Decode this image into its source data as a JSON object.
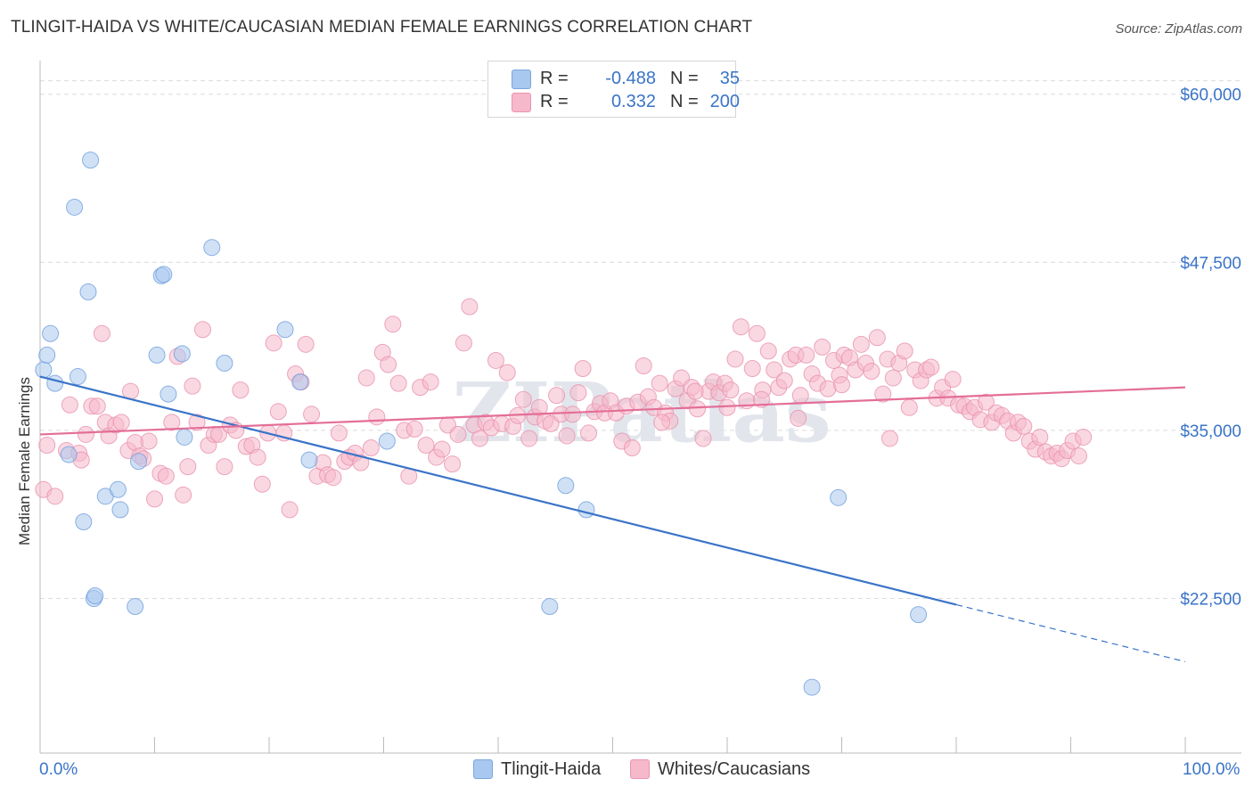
{
  "title": "TLINGIT-HAIDA VS WHITE/CAUCASIAN MEDIAN FEMALE EARNINGS CORRELATION CHART",
  "source": "Source: ZipAtlas.com",
  "watermark": "ZIPatlas",
  "colors": {
    "blue": "#3a74c8",
    "blue_fill": "#a9c8ef",
    "pink": "#e46e97",
    "pink_fill": "#f6b8cb",
    "grid": "#dcdcdc"
  },
  "legend": {
    "r_label": "R =",
    "n_label": "N =",
    "series": [
      {
        "name": "Tlingit-Haida",
        "r": "-0.488",
        "n": "35"
      },
      {
        "name": "Whites/Caucasians",
        "r": "0.332",
        "n": "200"
      }
    ]
  },
  "axes": {
    "x_min_label": "0.0%",
    "x_max_label": "100.0%"
  },
  "chart_data": {
    "type": "scatter",
    "title": "TLINGIT-HAIDA VS WHITE/CAUCASIAN MEDIAN FEMALE EARNINGS CORRELATION CHART",
    "xlabel": "",
    "ylabel": "Median Female Earnings",
    "xlim": [
      0,
      100
    ],
    "ylim": [
      11000,
      62500
    ],
    "y_ticks": [
      22500,
      35000,
      47500,
      60000
    ],
    "y_tick_labels": [
      "$22,500",
      "$35,000",
      "$47,500",
      "$60,000"
    ],
    "grid": true,
    "series": [
      {
        "name": "Tlingit-Haida",
        "trend": {
          "x0": 0,
          "y0": 39000,
          "x1": 100,
          "y1": 17800,
          "solid_until_x": 80
        },
        "points": [
          [
            0.3,
            39500
          ],
          [
            0.6,
            40600
          ],
          [
            0.9,
            42200
          ],
          [
            1.3,
            38500
          ],
          [
            2.5,
            33200
          ],
          [
            3.0,
            51600
          ],
          [
            3.3,
            39000
          ],
          [
            3.8,
            28200
          ],
          [
            4.2,
            45300
          ],
          [
            4.7,
            22500
          ],
          [
            4.4,
            55100
          ],
          [
            4.8,
            22700
          ],
          [
            5.7,
            30100
          ],
          [
            6.8,
            30600
          ],
          [
            7.0,
            29100
          ],
          [
            8.3,
            21900
          ],
          [
            8.6,
            32700
          ],
          [
            10.2,
            40600
          ],
          [
            10.6,
            46500
          ],
          [
            10.8,
            46600
          ],
          [
            11.2,
            37700
          ],
          [
            12.4,
            40700
          ],
          [
            12.6,
            34500
          ],
          [
            15.0,
            48600
          ],
          [
            16.1,
            40000
          ],
          [
            21.4,
            42500
          ],
          [
            22.7,
            38600
          ],
          [
            23.5,
            32800
          ],
          [
            30.3,
            34200
          ],
          [
            44.5,
            21900
          ],
          [
            45.9,
            30900
          ],
          [
            47.7,
            29100
          ],
          [
            69.7,
            30000
          ],
          [
            76.7,
            21300
          ],
          [
            67.4,
            15900
          ]
        ]
      },
      {
        "name": "Whites/Caucasians",
        "trend": {
          "x0": 0,
          "y0": 34700,
          "x1": 100,
          "y1": 38200
        },
        "points": [
          [
            0.3,
            30600
          ],
          [
            0.6,
            33900
          ],
          [
            1.3,
            30100
          ],
          [
            2.3,
            33500
          ],
          [
            2.6,
            36900
          ],
          [
            3.4,
            33300
          ],
          [
            3.6,
            32800
          ],
          [
            4.0,
            34700
          ],
          [
            4.5,
            36800
          ],
          [
            5.0,
            36800
          ],
          [
            5.4,
            42200
          ],
          [
            5.7,
            35600
          ],
          [
            6.0,
            34600
          ],
          [
            6.6,
            35400
          ],
          [
            7.1,
            35600
          ],
          [
            7.7,
            33500
          ],
          [
            7.9,
            37900
          ],
          [
            8.3,
            34100
          ],
          [
            8.7,
            33100
          ],
          [
            9.0,
            32900
          ],
          [
            9.5,
            34200
          ],
          [
            10.0,
            29900
          ],
          [
            10.5,
            31800
          ],
          [
            11.0,
            31600
          ],
          [
            11.5,
            35600
          ],
          [
            12.0,
            40500
          ],
          [
            12.5,
            30200
          ],
          [
            12.9,
            32300
          ],
          [
            13.3,
            38300
          ],
          [
            13.7,
            35600
          ],
          [
            14.2,
            42500
          ],
          [
            14.7,
            33900
          ],
          [
            15.2,
            34700
          ],
          [
            15.6,
            34700
          ],
          [
            16.1,
            32300
          ],
          [
            16.6,
            35400
          ],
          [
            17.1,
            35000
          ],
          [
            17.5,
            38000
          ],
          [
            18.0,
            33800
          ],
          [
            18.5,
            33900
          ],
          [
            19.0,
            33000
          ],
          [
            19.4,
            31000
          ],
          [
            19.9,
            34800
          ],
          [
            20.4,
            41500
          ],
          [
            20.8,
            36400
          ],
          [
            21.3,
            34800
          ],
          [
            21.8,
            29100
          ],
          [
            22.3,
            39200
          ],
          [
            22.8,
            38600
          ],
          [
            23.2,
            41400
          ],
          [
            23.7,
            36200
          ],
          [
            24.2,
            31600
          ],
          [
            24.7,
            32600
          ],
          [
            25.1,
            31700
          ],
          [
            25.6,
            31500
          ],
          [
            26.1,
            34800
          ],
          [
            26.6,
            32700
          ],
          [
            27.0,
            33000
          ],
          [
            27.5,
            33300
          ],
          [
            28.0,
            32600
          ],
          [
            28.5,
            38900
          ],
          [
            28.9,
            33700
          ],
          [
            29.4,
            36000
          ],
          [
            29.9,
            40800
          ],
          [
            30.4,
            39900
          ],
          [
            30.8,
            42900
          ],
          [
            31.3,
            38500
          ],
          [
            31.8,
            35000
          ],
          [
            32.2,
            31600
          ],
          [
            32.7,
            35100
          ],
          [
            33.2,
            38200
          ],
          [
            33.7,
            33900
          ],
          [
            34.1,
            38600
          ],
          [
            34.6,
            33000
          ],
          [
            35.1,
            33600
          ],
          [
            35.6,
            35400
          ],
          [
            36.0,
            32500
          ],
          [
            36.5,
            34700
          ],
          [
            37.0,
            41500
          ],
          [
            37.5,
            44200
          ],
          [
            37.9,
            35400
          ],
          [
            38.4,
            34400
          ],
          [
            38.9,
            35600
          ],
          [
            39.4,
            35200
          ],
          [
            39.8,
            40200
          ],
          [
            40.3,
            35500
          ],
          [
            40.8,
            39300
          ],
          [
            41.3,
            35300
          ],
          [
            41.7,
            36100
          ],
          [
            42.2,
            37300
          ],
          [
            42.7,
            34400
          ],
          [
            43.2,
            36000
          ],
          [
            43.6,
            36700
          ],
          [
            44.1,
            35700
          ],
          [
            44.6,
            35500
          ],
          [
            45.1,
            37600
          ],
          [
            45.5,
            36200
          ],
          [
            46.0,
            34600
          ],
          [
            46.5,
            36200
          ],
          [
            47.0,
            37800
          ],
          [
            47.4,
            39600
          ],
          [
            47.9,
            34800
          ],
          [
            48.4,
            36400
          ],
          [
            48.9,
            37000
          ],
          [
            49.3,
            36300
          ],
          [
            49.8,
            37200
          ],
          [
            50.3,
            36300
          ],
          [
            50.8,
            34200
          ],
          [
            51.2,
            36800
          ],
          [
            51.7,
            33700
          ],
          [
            52.2,
            37100
          ],
          [
            52.7,
            39800
          ],
          [
            53.1,
            37500
          ],
          [
            53.6,
            36700
          ],
          [
            54.1,
            38500
          ],
          [
            54.6,
            36300
          ],
          [
            55.0,
            35700
          ],
          [
            55.5,
            38100
          ],
          [
            56.0,
            38900
          ],
          [
            56.5,
            37200
          ],
          [
            56.9,
            38200
          ],
          [
            57.4,
            36600
          ],
          [
            57.9,
            34400
          ],
          [
            58.4,
            37900
          ],
          [
            58.8,
            38600
          ],
          [
            59.3,
            37800
          ],
          [
            59.8,
            38500
          ],
          [
            60.3,
            38000
          ],
          [
            60.7,
            40300
          ],
          [
            61.2,
            42700
          ],
          [
            61.7,
            37200
          ],
          [
            62.2,
            39600
          ],
          [
            62.6,
            42200
          ],
          [
            63.1,
            38000
          ],
          [
            63.6,
            40900
          ],
          [
            64.1,
            39500
          ],
          [
            64.5,
            38200
          ],
          [
            65.0,
            38700
          ],
          [
            65.5,
            40300
          ],
          [
            66.0,
            40600
          ],
          [
            66.4,
            37600
          ],
          [
            66.9,
            40600
          ],
          [
            67.4,
            39200
          ],
          [
            67.9,
            38500
          ],
          [
            68.3,
            41200
          ],
          [
            68.8,
            38100
          ],
          [
            69.3,
            40200
          ],
          [
            69.8,
            39100
          ],
          [
            70.2,
            40600
          ],
          [
            70.7,
            40400
          ],
          [
            71.2,
            39500
          ],
          [
            71.7,
            41400
          ],
          [
            72.1,
            40000
          ],
          [
            72.6,
            39400
          ],
          [
            73.1,
            41900
          ],
          [
            73.6,
            37700
          ],
          [
            74.0,
            40300
          ],
          [
            74.5,
            38900
          ],
          [
            75.0,
            40000
          ],
          [
            75.5,
            40900
          ],
          [
            75.9,
            36700
          ],
          [
            76.4,
            39500
          ],
          [
            76.9,
            38700
          ],
          [
            77.4,
            39500
          ],
          [
            77.8,
            39700
          ],
          [
            78.3,
            37400
          ],
          [
            78.8,
            38200
          ],
          [
            79.3,
            37400
          ],
          [
            79.7,
            38800
          ],
          [
            80.2,
            36900
          ],
          [
            80.7,
            36800
          ],
          [
            81.2,
            36400
          ],
          [
            81.6,
            36700
          ],
          [
            82.1,
            35800
          ],
          [
            82.6,
            37100
          ],
          [
            83.1,
            35600
          ],
          [
            83.5,
            36300
          ],
          [
            84.0,
            36100
          ],
          [
            84.5,
            35700
          ],
          [
            85.0,
            34800
          ],
          [
            85.4,
            35600
          ],
          [
            85.9,
            35300
          ],
          [
            86.4,
            34200
          ],
          [
            86.9,
            33600
          ],
          [
            87.3,
            34500
          ],
          [
            87.8,
            33400
          ],
          [
            88.3,
            33100
          ],
          [
            88.8,
            33300
          ],
          [
            89.2,
            32900
          ],
          [
            89.7,
            33500
          ],
          [
            90.2,
            34200
          ],
          [
            90.7,
            33100
          ],
          [
            91.1,
            34500
          ],
          [
            74.2,
            34400
          ],
          [
            70.0,
            38400
          ],
          [
            66.2,
            35900
          ],
          [
            63.0,
            37300
          ],
          [
            60.0,
            36700
          ],
          [
            57.2,
            37900
          ],
          [
            54.3,
            35600
          ]
        ]
      }
    ]
  }
}
